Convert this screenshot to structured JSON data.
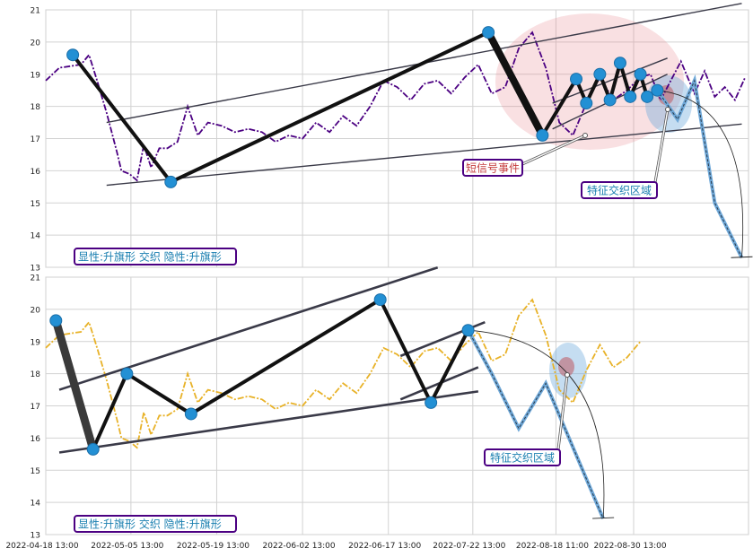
{
  "chart_data": [
    {
      "type": "line",
      "panel": "top",
      "ylim": [
        13,
        21
      ],
      "yticks": [
        "13",
        "14",
        "15",
        "16",
        "17",
        "18",
        "19",
        "20",
        "21"
      ],
      "grid": true,
      "line_color": "#4b0082",
      "series": [
        {
          "style": "dash-dot",
          "x": [
            0.0,
            2.0,
            3.6,
            5.2,
            6.4,
            7.6,
            9.0,
            10.5,
            11.2,
            12.4,
            13.5,
            14.5,
            15.6,
            16.8,
            18.0,
            19.5,
            21.0,
            22.5,
            24.0,
            26.0,
            28.0,
            30.0,
            32.0,
            34.0,
            36.0,
            38.0,
            40.0,
            42.0,
            44.0,
            46.0,
            48.0,
            50.0,
            52.0,
            54.0,
            56.0,
            58.0,
            60.0,
            62.0,
            64.0,
            66.0,
            68.0,
            70.0,
            72.0,
            74.0,
            76.0,
            78.0,
            80.0,
            82.0,
            84.0,
            86.0,
            88.0,
            89.5,
            91.0,
            92.5,
            94.0,
            96.0,
            97.5,
            99.0,
            100.5,
            102.0,
            103.5
          ],
          "values": [
            18.8,
            19.2,
            19.25,
            19.3,
            19.6,
            18.8,
            17.8,
            16.6,
            16.0,
            15.9,
            15.7,
            16.8,
            16.1,
            16.7,
            16.7,
            16.9,
            18.0,
            17.1,
            17.5,
            17.4,
            17.2,
            17.3,
            17.2,
            16.9,
            17.1,
            17.0,
            17.5,
            17.2,
            17.7,
            17.4,
            18.0,
            18.8,
            18.6,
            18.2,
            18.7,
            18.8,
            18.4,
            18.9,
            19.3,
            18.4,
            18.6,
            19.8,
            20.3,
            19.2,
            17.5,
            17.1,
            18.1,
            18.9,
            18.2,
            18.5,
            18.9,
            19.0,
            18.2,
            18.8,
            19.4,
            18.4,
            19.1,
            18.3,
            18.6,
            18.2,
            18.9
          ]
        }
      ],
      "pivots": {
        "x": [
          4.0,
          18.5,
          65.5,
          73.5,
          78.5,
          80.0,
          82.0,
          83.5,
          85.0,
          86.5,
          88.0,
          89.0,
          90.5
        ],
        "y": [
          19.6,
          15.65,
          20.3,
          17.1,
          18.85,
          18.1,
          19.0,
          18.2,
          19.35,
          18.3,
          19.0,
          18.3,
          18.5
        ]
      },
      "projection": {
        "x": [
          90.5,
          93.5,
          96.0,
          99.0,
          103.0
        ],
        "y": [
          18.5,
          17.6,
          18.8,
          15.0,
          13.3
        ]
      },
      "channel_lines": [
        {
          "x": [
            9,
            103
          ],
          "y": [
            17.5,
            21.2
          ]
        },
        {
          "x": [
            9,
            103
          ],
          "y": [
            15.55,
            17.45
          ]
        },
        {
          "x": [
            75,
            92
          ],
          "y": [
            17.3,
            19.0
          ]
        },
        {
          "x": [
            75,
            92
          ],
          "y": [
            18.1,
            19.5
          ]
        }
      ],
      "annotations": [
        {
          "text": "短信号事件",
          "color": "#c43c3c",
          "border": "#4b0082"
        },
        {
          "text": "特征交织区域",
          "color": "#1a7fb0",
          "border": "#4b0082"
        }
      ],
      "caption": {
        "text": "显性:升旗形 交织 隐性:升旗形",
        "color": "#1a7fb0",
        "border": "#4b0082"
      }
    },
    {
      "type": "line",
      "panel": "bottom",
      "ylim": [
        13,
        21
      ],
      "yticks": [
        "13",
        "14",
        "15",
        "16",
        "17",
        "18",
        "19",
        "20",
        "21"
      ],
      "grid": true,
      "line_color": "#e8b228",
      "series": [
        {
          "style": "dash-dot",
          "x": [
            0.0,
            2.0,
            3.6,
            5.2,
            6.4,
            7.6,
            9.0,
            10.5,
            11.2,
            12.4,
            13.5,
            14.5,
            15.6,
            16.8,
            18.0,
            19.5,
            21.0,
            22.5,
            24.0,
            26.0,
            28.0,
            30.0,
            32.0,
            34.0,
            36.0,
            38.0,
            40.0,
            42.0,
            44.0,
            46.0,
            48.0,
            50.0,
            52.0,
            54.0,
            56.0,
            58.0,
            60.0,
            62.0,
            64.0,
            66.0,
            68.0,
            70.0,
            72.0,
            74.0,
            76.0,
            78.0,
            80.0,
            82.0,
            84.0,
            86.0,
            88.0
          ],
          "values": [
            18.8,
            19.2,
            19.25,
            19.3,
            19.6,
            18.8,
            17.8,
            16.6,
            16.0,
            15.9,
            15.7,
            16.8,
            16.1,
            16.7,
            16.7,
            16.9,
            18.0,
            17.1,
            17.5,
            17.4,
            17.2,
            17.3,
            17.2,
            16.9,
            17.1,
            17.0,
            17.5,
            17.2,
            17.7,
            17.4,
            18.0,
            18.8,
            18.6,
            18.2,
            18.7,
            18.8,
            18.4,
            18.9,
            19.3,
            18.4,
            18.6,
            19.8,
            20.3,
            19.2,
            17.5,
            17.1,
            18.1,
            18.9,
            18.2,
            18.5,
            19.0
          ]
        }
      ],
      "pivots": {
        "x": [
          1.5,
          7.0,
          12.0,
          21.5,
          49.5,
          57.0,
          62.5
        ],
        "y": [
          19.65,
          15.65,
          18.0,
          16.75,
          20.3,
          17.1,
          19.35
        ]
      },
      "projection": {
        "x": [
          62.5,
          66.0,
          70.0,
          74.0,
          82.5
        ],
        "y": [
          19.35,
          18.0,
          16.3,
          17.7,
          13.5
        ]
      },
      "channel_lines": [
        {
          "x": [
            2.0,
            58.0
          ],
          "y": [
            17.5,
            21.3
          ]
        },
        {
          "x": [
            2.0,
            64.0
          ],
          "y": [
            15.55,
            17.45
          ]
        },
        {
          "x": [
            52.5,
            65.0
          ],
          "y": [
            18.55,
            19.6
          ]
        },
        {
          "x": [
            52.5,
            64.0
          ],
          "y": [
            17.2,
            18.2
          ]
        }
      ],
      "annotations": [
        {
          "text": "特征交织区域",
          "color": "#1a7fb0",
          "border": "#4b0082"
        }
      ],
      "caption": {
        "text": "显性:升旗形 交织 隐性:升旗形",
        "color": "#1a7fb0",
        "border": "#4b0082"
      },
      "xticks": [
        "2022-04-18 13:00",
        "2022-05-05 13:00",
        "2022-05-19 13:00",
        "2022-06-02 13:00",
        "2022-06-17 13:00",
        "2022-07-22 13:00",
        "2022-08-18 11:00",
        "2022-08-30 13:00"
      ]
    }
  ]
}
